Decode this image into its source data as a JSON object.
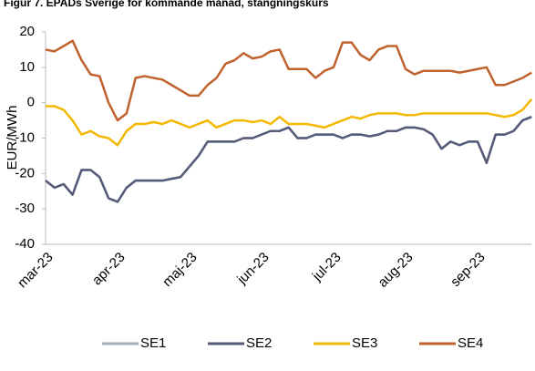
{
  "chart_data": {
    "type": "line",
    "title": "Figur 7. EPADs Sverige för kommande månad, stängningskurs",
    "y_label": "EUR/MWh",
    "categories": [
      "mar-23",
      null,
      null,
      null,
      null,
      null,
      null,
      null,
      "apr-23",
      null,
      null,
      null,
      null,
      null,
      null,
      null,
      "maj-23",
      null,
      null,
      null,
      null,
      null,
      null,
      null,
      "jun-23",
      null,
      null,
      null,
      null,
      null,
      null,
      null,
      "jul-23",
      null,
      null,
      null,
      null,
      null,
      null,
      null,
      "aug-23",
      null,
      null,
      null,
      null,
      null,
      null,
      null,
      "sep-23",
      null,
      null,
      null,
      null,
      null,
      null
    ],
    "series": [
      {
        "name": "SE1",
        "color": "#a5adb8",
        "values": [
          -22,
          -24,
          -23,
          -26,
          -19,
          -19,
          -21,
          -27,
          -28,
          -24,
          -22,
          -22,
          -22,
          -22,
          -21.5,
          -21,
          -18,
          -15,
          -11,
          -11,
          -11,
          -11,
          -10,
          -10,
          -9,
          -8,
          -8,
          -7,
          -10,
          -10,
          -9,
          -9,
          -9,
          -10,
          -9,
          -9,
          -9.5,
          -9,
          -8,
          -8,
          -7,
          -7,
          -7.5,
          -9,
          -13,
          -11,
          -12,
          -11,
          -11,
          -17,
          -9,
          -9,
          -8,
          -5,
          -4
        ]
      },
      {
        "name": "SE2",
        "color": "#545a78",
        "values": [
          -22,
          -24,
          -23,
          -26,
          -19,
          -19,
          -21,
          -27,
          -28,
          -24,
          -22,
          -22,
          -22,
          -22,
          -21.5,
          -21,
          -18,
          -15,
          -11,
          -11,
          -11,
          -11,
          -10,
          -10,
          -9,
          -8,
          -8,
          -7,
          -10,
          -10,
          -9,
          -9,
          -9,
          -10,
          -9,
          -9,
          -9.5,
          -9,
          -8,
          -8,
          -7,
          -7,
          -7.5,
          -9,
          -13,
          -11,
          -12,
          -11,
          -11,
          -17,
          -9,
          -9,
          -8,
          -5,
          -4
        ]
      },
      {
        "name": "SE3",
        "color": "#f5b800",
        "values": [
          -1,
          -1,
          -2,
          -5,
          -9,
          -8,
          -9.5,
          -10,
          -12,
          -8,
          -6,
          -6,
          -5.5,
          -6,
          -5,
          -6,
          -7,
          -6,
          -5,
          -7,
          -6,
          -5,
          -5,
          -5.5,
          -5,
          -6,
          -4,
          -6,
          -6,
          -6,
          -6.5,
          -7,
          -6,
          -5,
          -4,
          -4.5,
          -3.5,
          -3,
          -3,
          -3,
          -3.5,
          -3.5,
          -3,
          -3,
          -3,
          -3,
          -3,
          -3,
          -3,
          -3,
          -3.5,
          -4,
          -3.5,
          -2,
          1
        ]
      },
      {
        "name": "SE4",
        "color": "#c0622d",
        "values": [
          15,
          14.5,
          16,
          17.5,
          12,
          8,
          7.5,
          0,
          -5,
          -3,
          7,
          7.5,
          7,
          6.5,
          5,
          3.5,
          2,
          2,
          5,
          7,
          11,
          12,
          14,
          12.5,
          13,
          14.5,
          15,
          9.5,
          9.5,
          9.5,
          7,
          9,
          10,
          17,
          17,
          13.5,
          12,
          15,
          16,
          16,
          9.5,
          8,
          9,
          9,
          9,
          9,
          8.5,
          9,
          9.5,
          10,
          5,
          5,
          6,
          7,
          8.5
        ]
      }
    ],
    "ylim": [
      -40,
      20
    ],
    "yticks": [
      -40,
      -30,
      -20,
      -10,
      0,
      10,
      20
    ],
    "legend": "bottom"
  }
}
